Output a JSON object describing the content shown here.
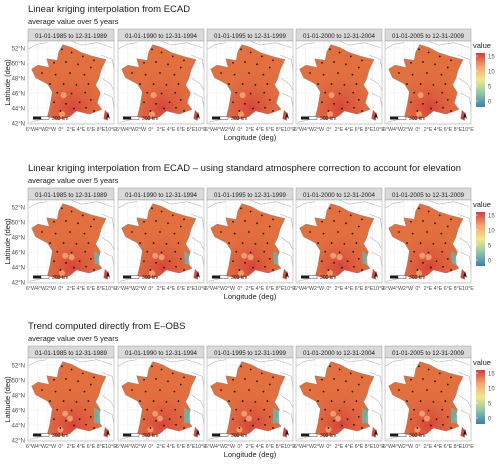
{
  "panel_titles": [
    "01-01-1985 to 12-31-1989",
    "01-01-1990 to 12-31-1994",
    "01-01-1995 to 12-31-1999",
    "01-01-2000 to 12-31-2004",
    "01-01-2005 to 12-31-2009"
  ],
  "chart_data": [
    {
      "type": "heatmap",
      "title": "Linear kriging interpolation from ECAD",
      "subtitle": "average value over 5 years",
      "xlabel": "Longitude (deg)",
      "ylabel": "Latitude (deg)",
      "x_ticks": [
        "6°W",
        "4°W",
        "2°W",
        "0°",
        "2°E",
        "4°E",
        "6°E",
        "8°E",
        "10°E"
      ],
      "y_ticks": [
        "52°N",
        "50°N",
        "48°N",
        "46°N",
        "44°N",
        "42°N"
      ],
      "scale_bar": "300 km",
      "legend": {
        "title": "value",
        "ticks": [
          15,
          10,
          5,
          0
        ],
        "range": [
          -2,
          16
        ]
      }
    },
    {
      "type": "heatmap",
      "title": "Linear kriging interpolation from ECAD – using standard atmosphere correction to account for elevation",
      "subtitle": "average value over 5 years",
      "xlabel": "Longitude (deg)",
      "ylabel": "Latitude (deg)",
      "x_ticks": [
        "6°W",
        "4°W",
        "2°W",
        "0°",
        "2°E",
        "4°E",
        "6°E",
        "8°E",
        "10°E"
      ],
      "y_ticks": [
        "52°N",
        "50°N",
        "48°N",
        "46°N",
        "44°N",
        "42°N"
      ],
      "scale_bar": "300 km",
      "legend": {
        "title": "value",
        "ticks": [
          15,
          10,
          5,
          0
        ],
        "range": [
          -2,
          16
        ]
      }
    },
    {
      "type": "heatmap",
      "title": "Trend computed directly from E–OBS",
      "subtitle": "average value over 5 years",
      "xlabel": "Longitude (deg)",
      "ylabel": "Latitude (deg)",
      "x_ticks": [
        "6°W",
        "4°W",
        "2°W",
        "0°",
        "2°E",
        "4°E",
        "6°E",
        "8°E",
        "10°E"
      ],
      "y_ticks": [
        "52°N",
        "50°N",
        "48°N",
        "46°N",
        "44°N",
        "42°N"
      ],
      "scale_bar": "300 km",
      "legend": {
        "title": "value",
        "ticks": [
          15,
          10,
          5,
          0
        ],
        "range": [
          -2,
          16
        ]
      }
    }
  ],
  "colors": {
    "map_base": "#e2703f",
    "map_warm": "#d7443a",
    "map_cool": "#6fb0a4",
    "station": "#1a1a1a",
    "strip": "#d9d9d9",
    "scale": [
      "#3b7fb5",
      "#8cc6a2",
      "#f2e88a",
      "#f6a46b",
      "#d63a3a"
    ]
  }
}
